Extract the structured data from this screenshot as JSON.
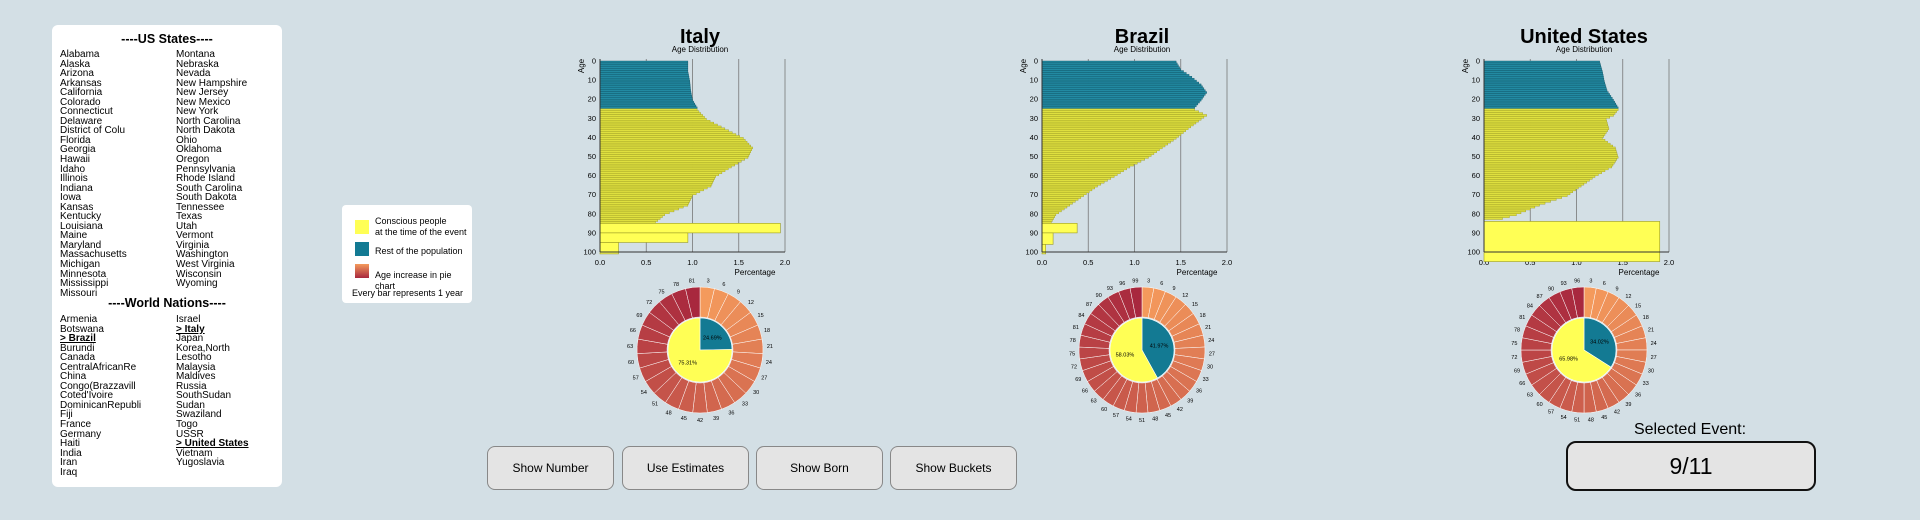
{
  "sidebar": {
    "us_title": "----US States----",
    "us_col1": [
      "Alabama",
      "Alaska",
      "Arizona",
      "Arkansas",
      "California",
      "Colorado",
      "Connecticut",
      "Delaware",
      "District of Colu",
      "Florida",
      "Georgia",
      "Hawaii",
      "Idaho",
      "Illinois",
      "Indiana",
      "Iowa",
      "Kansas",
      "Kentucky",
      "Louisiana",
      "Maine",
      "Maryland",
      "Massachusetts",
      "Michigan",
      "Minnesota",
      "Mississippi",
      "Missouri"
    ],
    "us_col2": [
      "Montana",
      "Nebraska",
      "Nevada",
      "New Hampshire",
      "New Jersey",
      "New Mexico",
      "New York",
      "North Carolina",
      "North Dakota",
      "Ohio",
      "Oklahoma",
      "Oregon",
      "Pennsylvania",
      "Rhode Island",
      "South Carolina",
      "South Dakota",
      "Tennessee",
      "Texas",
      "Utah",
      "Vermont",
      "Virginia",
      "Washington",
      "West Virginia",
      "Wisconsin",
      "Wyoming"
    ],
    "world_title": "----World Nations----",
    "world_col1": [
      "Armenia",
      "Botswana",
      "> Brazil",
      "Burundi",
      "Canada",
      "CentralAfricanRe",
      "China",
      "Congo(Brazzavill",
      "Coted'Ivoire",
      "DominicanRepubli",
      "Fiji",
      "France",
      "Germany",
      "Haiti",
      "India",
      "Iran",
      "Iraq"
    ],
    "world_col2": [
      "Israel",
      "> Italy",
      "Japan",
      "Korea,North",
      "Lesotho",
      "Malaysia",
      "Maldives",
      "Russia",
      "SouthSudan",
      "Sudan",
      "Swaziland",
      "Togo",
      "USSR",
      "> United States",
      "Vietnam",
      "Yugoslavia"
    ]
  },
  "legend": {
    "items": [
      {
        "label1": "Conscious people",
        "label2": "at the time of the event",
        "color": "#ffff55"
      },
      {
        "label1": "Rest of the population",
        "label2": "",
        "color": "#137a93"
      },
      {
        "label1": "Age increase in pie chart",
        "label2": "",
        "color": "gradient"
      }
    ],
    "note": "Every bar represents 1 year"
  },
  "colors": {
    "conscious": "#ffff55",
    "rest": "#137a93",
    "bar_yellow": "#dfe03f",
    "bar_teal": "#228aa2",
    "ring_start": "#f49a5c",
    "ring_end": "#a8283e"
  },
  "chart_data": [
    {
      "type": "bar",
      "title": "Italy",
      "subtitle": "Age Distribution",
      "xlabel": "Percentage",
      "ylabel": "Age",
      "xlim": [
        0,
        2.0
      ],
      "xticks": [
        "0.0",
        "0.5",
        "1.0",
        "1.5",
        "2.0"
      ],
      "yticks": [
        "0",
        "10",
        "20",
        "30",
        "40",
        "50",
        "60",
        "70",
        "80",
        "90",
        "100"
      ],
      "threshold_age": 25,
      "profile": [
        [
          0,
          0.95
        ],
        [
          5,
          0.95
        ],
        [
          10,
          0.97
        ],
        [
          15,
          0.98
        ],
        [
          20,
          1.0
        ],
        [
          24,
          1.05
        ],
        [
          25,
          1.05
        ],
        [
          30,
          1.15
        ],
        [
          35,
          1.35
        ],
        [
          40,
          1.55
        ],
        [
          45,
          1.65
        ],
        [
          50,
          1.6
        ],
        [
          55,
          1.42
        ],
        [
          60,
          1.25
        ],
        [
          65,
          1.2
        ],
        [
          70,
          1.0
        ],
        [
          75,
          0.95
        ],
        [
          80,
          0.7
        ],
        [
          84,
          0.6
        ]
      ],
      "bucket_bars": [
        {
          "age_from": 85,
          "age_to": 90,
          "value": 1.95
        },
        {
          "age_from": 90,
          "age_to": 95,
          "value": 0.95
        },
        {
          "age_from": 95,
          "age_to": 101,
          "value": 0.2
        }
      ],
      "pie": [
        {
          "label": "24.69%",
          "value": 24.69,
          "group": "rest"
        },
        {
          "label": "75.31%",
          "value": 75.31,
          "group": "conscious"
        }
      ],
      "ring_labels": [
        "3",
        "6",
        "9",
        "12",
        "15",
        "18",
        "21",
        "24",
        "27",
        "30",
        "33",
        "36",
        "39",
        "42",
        "45",
        "48",
        "51",
        "54",
        "57",
        "60",
        "63",
        "66",
        "69",
        "72",
        "75",
        "78",
        "81"
      ]
    },
    {
      "type": "bar",
      "title": "Brazil",
      "subtitle": "Age Distribution",
      "xlabel": "Percentage",
      "ylabel": "Age",
      "xlim": [
        0,
        2.0
      ],
      "xticks": [
        "0.0",
        "0.5",
        "1.0",
        "1.5",
        "2.0"
      ],
      "yticks": [
        "0",
        "10",
        "20",
        "30",
        "40",
        "50",
        "60",
        "70",
        "80",
        "90",
        "100"
      ],
      "threshold_age": 25,
      "profile": [
        [
          0,
          1.45
        ],
        [
          4,
          1.5
        ],
        [
          8,
          1.62
        ],
        [
          12,
          1.72
        ],
        [
          16,
          1.78
        ],
        [
          20,
          1.72
        ],
        [
          24,
          1.65
        ],
        [
          25,
          1.65
        ],
        [
          28,
          1.78
        ],
        [
          30,
          1.72
        ],
        [
          35,
          1.58
        ],
        [
          40,
          1.45
        ],
        [
          45,
          1.3
        ],
        [
          50,
          1.15
        ],
        [
          55,
          0.95
        ],
        [
          60,
          0.78
        ],
        [
          65,
          0.6
        ],
        [
          70,
          0.45
        ],
        [
          75,
          0.3
        ],
        [
          80,
          0.15
        ],
        [
          84,
          0.1
        ]
      ],
      "bucket_bars": [
        {
          "age_from": 85,
          "age_to": 90,
          "value": 0.38
        },
        {
          "age_from": 90,
          "age_to": 96,
          "value": 0.12
        },
        {
          "age_from": 96,
          "age_to": 101,
          "value": 0.04
        }
      ],
      "pie": [
        {
          "label": "41.97%",
          "value": 41.97,
          "group": "rest"
        },
        {
          "label": "58.03%",
          "value": 58.03,
          "group": "conscious"
        }
      ],
      "ring_labels": [
        "3",
        "6",
        "9",
        "12",
        "15",
        "18",
        "21",
        "24",
        "27",
        "30",
        "33",
        "36",
        "39",
        "42",
        "45",
        "48",
        "51",
        "54",
        "57",
        "60",
        "63",
        "66",
        "69",
        "72",
        "75",
        "78",
        "81",
        "84",
        "87",
        "90",
        "93",
        "96",
        "99"
      ]
    },
    {
      "type": "bar",
      "title": "United States",
      "subtitle": "Age Distribution",
      "xlabel": "Percentage",
      "ylabel": "Age",
      "xlim": [
        0,
        2.0
      ],
      "xticks": [
        "0.0",
        "0.5",
        "1.0",
        "1.5",
        "2.0"
      ],
      "yticks": [
        "0",
        "10",
        "20",
        "30",
        "40",
        "50",
        "60",
        "70",
        "80",
        "90",
        "100"
      ],
      "threshold_age": 25,
      "profile": [
        [
          0,
          1.25
        ],
        [
          5,
          1.28
        ],
        [
          10,
          1.3
        ],
        [
          15,
          1.33
        ],
        [
          20,
          1.4
        ],
        [
          24,
          1.45
        ],
        [
          25,
          1.45
        ],
        [
          28,
          1.4
        ],
        [
          30,
          1.32
        ],
        [
          35,
          1.35
        ],
        [
          40,
          1.28
        ],
        [
          45,
          1.42
        ],
        [
          50,
          1.45
        ],
        [
          55,
          1.38
        ],
        [
          60,
          1.2
        ],
        [
          65,
          1.05
        ],
        [
          70,
          0.9
        ],
        [
          75,
          0.6
        ],
        [
          80,
          0.35
        ],
        [
          82,
          0.2
        ]
      ],
      "bucket_bars": [
        {
          "age_from": 84,
          "age_to": 105,
          "value": 1.9
        }
      ],
      "pie": [
        {
          "label": "34.02%",
          "value": 34.02,
          "group": "rest"
        },
        {
          "label": "65.98%",
          "value": 65.98,
          "group": "conscious"
        }
      ],
      "ring_labels": [
        "3",
        "6",
        "9",
        "12",
        "15",
        "18",
        "21",
        "24",
        "27",
        "30",
        "33",
        "36",
        "39",
        "42",
        "45",
        "48",
        "51",
        "54",
        "57",
        "60",
        "63",
        "66",
        "69",
        "72",
        "75",
        "78",
        "81",
        "84",
        "87",
        "90",
        "93",
        "96"
      ]
    }
  ],
  "buttons": {
    "show_number": "Show Number",
    "use_estimates": "Use Estimates",
    "show_born": "Show Born",
    "show_buckets": "Show Buckets"
  },
  "event": {
    "label": "Selected Event:",
    "value": "9/11"
  }
}
